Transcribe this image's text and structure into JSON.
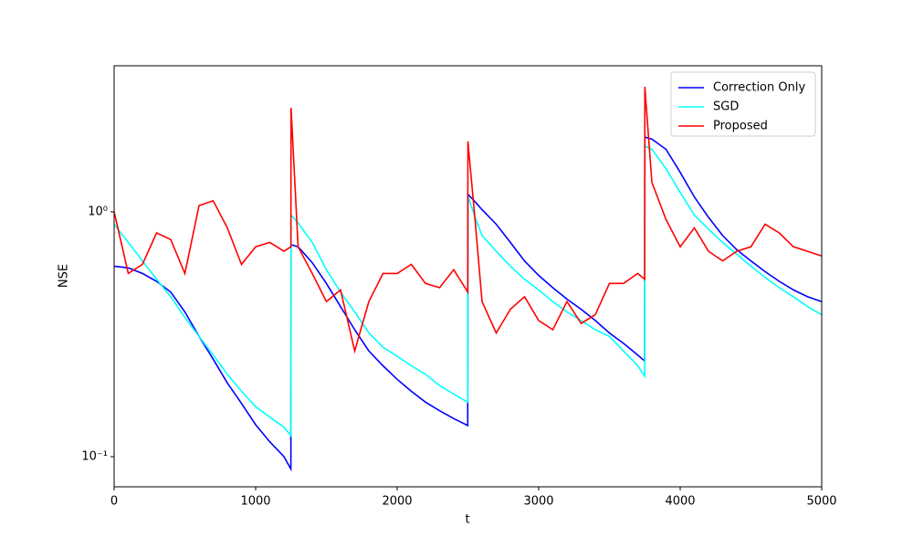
{
  "chart_data": {
    "type": "line",
    "xlabel": "t",
    "ylabel": "NSE",
    "log_y": true,
    "legend": "upper right",
    "x": [
      0,
      100,
      200,
      300,
      400,
      500,
      600,
      700,
      800,
      900,
      1000,
      1100,
      1200,
      1249,
      1250,
      1300,
      1400,
      1500,
      1600,
      1700,
      1800,
      1900,
      2000,
      2100,
      2200,
      2300,
      2400,
      2499,
      2500,
      2550,
      2600,
      2700,
      2800,
      2900,
      3000,
      3100,
      3200,
      3300,
      3400,
      3500,
      3600,
      3700,
      3749,
      3750,
      3800,
      3900,
      4000,
      4100,
      4200,
      4300,
      4400,
      4500,
      4600,
      4700,
      4800,
      4900,
      5000
    ],
    "series": [
      {
        "name": "Correction Only",
        "color": "#0000ff",
        "values": [
          0.6,
          0.59,
          0.56,
          0.52,
          0.47,
          0.39,
          0.31,
          0.25,
          0.2,
          0.165,
          0.135,
          0.115,
          0.1,
          0.089,
          0.734,
          0.72,
          0.62,
          0.51,
          0.41,
          0.33,
          0.27,
          0.235,
          0.207,
          0.185,
          0.167,
          0.154,
          0.143,
          0.134,
          1.18,
          1.1,
          1.02,
          0.89,
          0.75,
          0.63,
          0.55,
          0.49,
          0.44,
          0.4,
          0.36,
          0.32,
          0.29,
          0.26,
          0.246,
          2.02,
          1.98,
          1.8,
          1.45,
          1.15,
          0.95,
          0.8,
          0.7,
          0.63,
          0.57,
          0.52,
          0.48,
          0.45,
          0.43
        ]
      },
      {
        "name": "SGD",
        "color": "#00ffff",
        "values": [
          0.89,
          0.75,
          0.63,
          0.53,
          0.45,
          0.37,
          0.31,
          0.26,
          0.217,
          0.185,
          0.16,
          0.145,
          0.132,
          0.122,
          0.97,
          0.9,
          0.75,
          0.58,
          0.47,
          0.39,
          0.32,
          0.28,
          0.257,
          0.235,
          0.217,
          0.195,
          0.18,
          0.167,
          1.16,
          0.95,
          0.8,
          0.69,
          0.6,
          0.53,
          0.48,
          0.43,
          0.39,
          0.36,
          0.33,
          0.31,
          0.27,
          0.235,
          0.213,
          1.86,
          1.8,
          1.5,
          1.2,
          0.97,
          0.85,
          0.75,
          0.67,
          0.6,
          0.54,
          0.49,
          0.45,
          0.41,
          0.38
        ]
      },
      {
        "name": "Proposed",
        "color": "#ff0000",
        "values": [
          1.0,
          0.56,
          0.61,
          0.82,
          0.77,
          0.56,
          1.06,
          1.11,
          0.86,
          0.61,
          0.72,
          0.75,
          0.69,
          0.72,
          2.66,
          0.72,
          0.56,
          0.43,
          0.48,
          0.27,
          0.43,
          0.56,
          0.56,
          0.61,
          0.51,
          0.49,
          0.58,
          0.47,
          1.94,
          0.93,
          0.43,
          0.32,
          0.4,
          0.45,
          0.36,
          0.33,
          0.43,
          0.35,
          0.38,
          0.51,
          0.51,
          0.56,
          0.53,
          3.24,
          1.32,
          0.93,
          0.72,
          0.86,
          0.69,
          0.63,
          0.69,
          0.72,
          0.89,
          0.82,
          0.72,
          0.69,
          0.66
        ]
      }
    ],
    "xlim": [
      0,
      5000
    ],
    "xticks": [
      0,
      1000,
      2000,
      3000,
      4000,
      5000
    ],
    "ylim": [
      0.0753,
      3.95
    ],
    "yticks": [
      {
        "value": 0.1,
        "label": "10⁻¹"
      },
      {
        "value": 1,
        "label": "10⁰"
      }
    ]
  }
}
